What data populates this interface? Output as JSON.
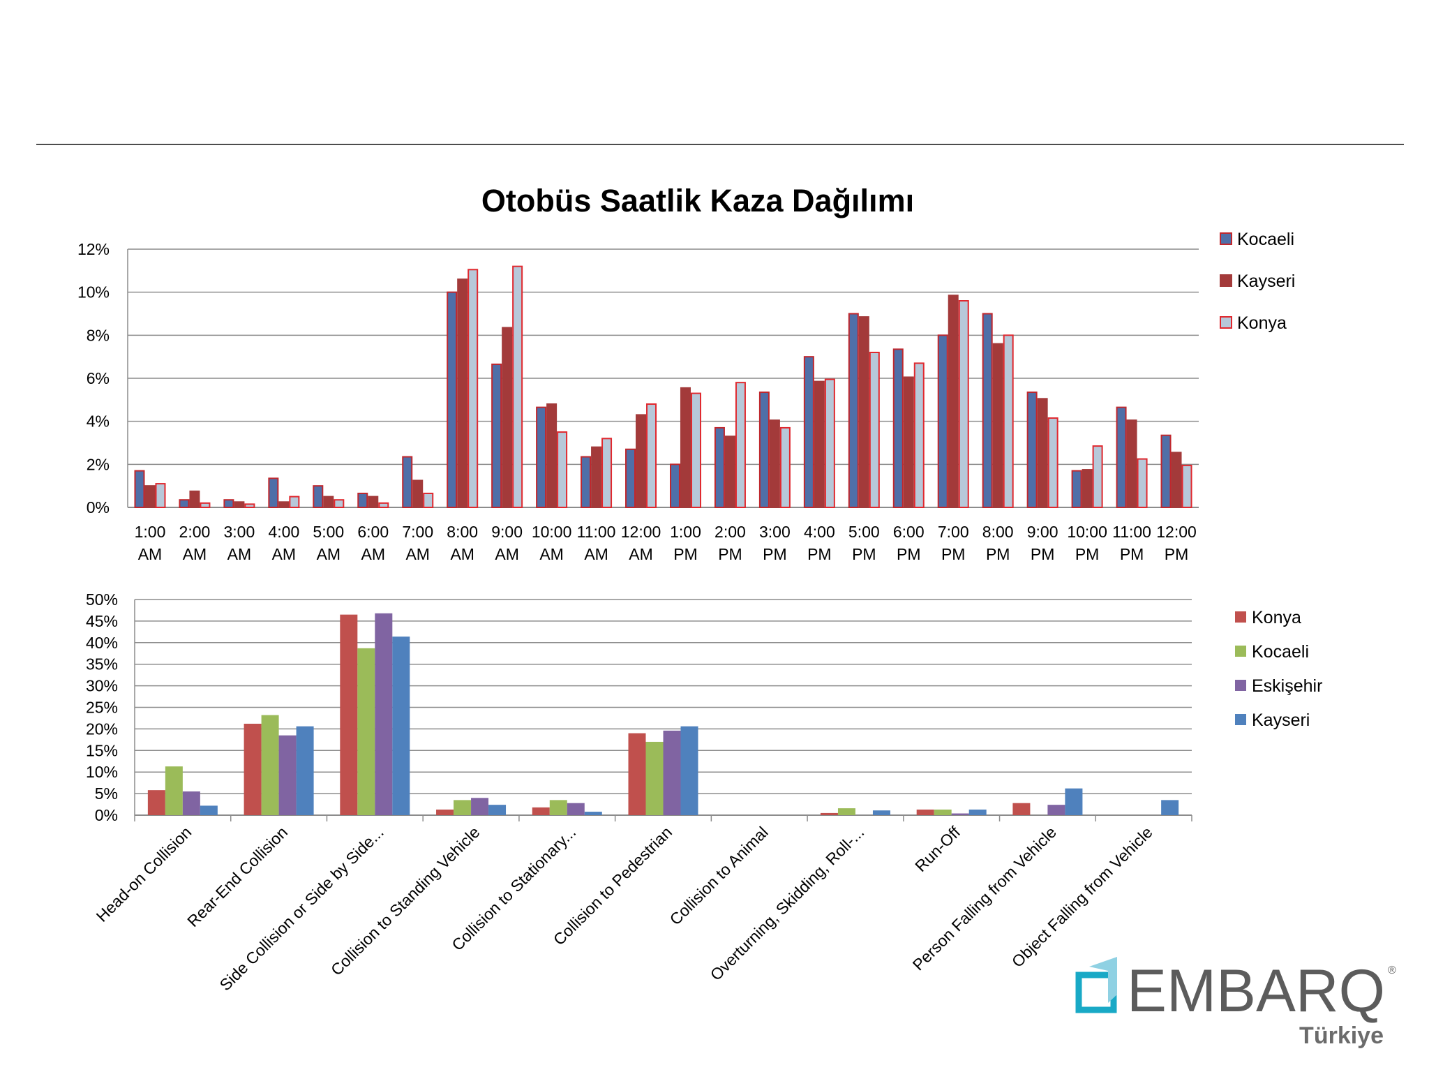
{
  "header": {
    "title": "Otobüs Saatlik Kaza Dağılımı"
  },
  "chart_data": [
    {
      "type": "bar",
      "title": "Otobüs Saatlik Kaza Dağılımı",
      "ylim": [
        0,
        12
      ],
      "yticks": [
        0,
        2,
        4,
        6,
        8,
        10,
        12
      ],
      "ytick_labels": [
        "0%",
        "2%",
        "4%",
        "6%",
        "8%",
        "10%",
        "12%"
      ],
      "categories": [
        [
          "1:00",
          "AM"
        ],
        [
          "2:00",
          "AM"
        ],
        [
          "3:00",
          "AM"
        ],
        [
          "4:00",
          "AM"
        ],
        [
          "5:00",
          "AM"
        ],
        [
          "6:00",
          "AM"
        ],
        [
          "7:00",
          "AM"
        ],
        [
          "8:00",
          "AM"
        ],
        [
          "9:00",
          "AM"
        ],
        [
          "10:00",
          "AM"
        ],
        [
          "11:00",
          "AM"
        ],
        [
          "12:00",
          "AM"
        ],
        [
          "1:00",
          "PM"
        ],
        [
          "2:00",
          "PM"
        ],
        [
          "3:00",
          "PM"
        ],
        [
          "4:00",
          "PM"
        ],
        [
          "5:00",
          "PM"
        ],
        [
          "6:00",
          "PM"
        ],
        [
          "7:00",
          "PM"
        ],
        [
          "8:00",
          "PM"
        ],
        [
          "9:00",
          "PM"
        ],
        [
          "10:00",
          "PM"
        ],
        [
          "11:00",
          "PM"
        ],
        [
          "12:00",
          "PM"
        ]
      ],
      "legend_position": "right",
      "grid": true,
      "series": [
        {
          "name": "Kocaeli",
          "color": "#4f6fa8",
          "border": "#c0272d",
          "values": [
            1.7,
            0.35,
            0.35,
            1.35,
            1.0,
            0.65,
            2.35,
            10.0,
            6.65,
            4.65,
            2.35,
            2.7,
            2.0,
            3.7,
            5.35,
            7.0,
            9.0,
            7.35,
            8.0,
            9.0,
            5.35,
            1.7,
            4.65,
            3.35
          ]
        },
        {
          "name": "Kayseri",
          "color": "#a33a3a",
          "border": "#a33a3a",
          "values": [
            1.0,
            0.75,
            0.25,
            0.25,
            0.5,
            0.5,
            1.25,
            10.6,
            8.35,
            4.8,
            2.8,
            4.3,
            5.55,
            3.3,
            4.05,
            5.85,
            8.85,
            6.05,
            9.85,
            7.6,
            5.05,
            1.75,
            4.05,
            2.55
          ]
        },
        {
          "name": "Konya",
          "color": "#b7c8d9",
          "border": "#e0282e",
          "values": [
            1.1,
            0.2,
            0.15,
            0.5,
            0.35,
            0.2,
            0.65,
            11.05,
            11.2,
            3.5,
            3.2,
            4.8,
            5.3,
            5.8,
            3.7,
            5.95,
            7.2,
            6.7,
            9.6,
            8.0,
            4.15,
            2.85,
            2.25,
            1.95
          ]
        }
      ]
    },
    {
      "type": "bar",
      "ylim": [
        0,
        50
      ],
      "yticks": [
        0,
        5,
        10,
        15,
        20,
        25,
        30,
        35,
        40,
        45,
        50
      ],
      "ytick_labels": [
        "0%",
        "5%",
        "10%",
        "15%",
        "20%",
        "25%",
        "30%",
        "35%",
        "40%",
        "45%",
        "50%"
      ],
      "categories": [
        "Head-on Collision",
        "Rear-End Collision",
        "Side Collision or Side by Side...",
        "Collision to Standing Vehicle",
        "Collision to Stationary...",
        "Collision to Pedestrian",
        "Collision to Animal",
        "Overturning, Skidding, Roll-...",
        "Run-Off",
        "Person Falling from Vehicle",
        "Object Falling from Vehicle"
      ],
      "legend_position": "right",
      "grid": true,
      "series": [
        {
          "name": "Konya",
          "color": "#c0504d",
          "values": [
            5.8,
            21.2,
            46.5,
            1.3,
            1.8,
            19.0,
            0,
            0.5,
            1.3,
            2.8,
            0
          ]
        },
        {
          "name": "Kocaeli",
          "color": "#9bbb59",
          "values": [
            11.3,
            23.2,
            38.7,
            3.5,
            3.5,
            17.0,
            0,
            1.6,
            1.3,
            0,
            0
          ]
        },
        {
          "name": "Eskişehir",
          "color": "#8064a2",
          "values": [
            5.5,
            18.5,
            46.8,
            4.0,
            2.8,
            19.6,
            0,
            0,
            0.4,
            2.4,
            0
          ]
        },
        {
          "name": "Kayseri",
          "color": "#4f81bd",
          "values": [
            2.2,
            20.6,
            41.4,
            2.4,
            0.8,
            20.6,
            0,
            1.1,
            1.3,
            6.2,
            3.5
          ]
        }
      ]
    }
  ],
  "logo": {
    "brand": "EMBARQ",
    "registered": "®",
    "subtitle": "Türkiye"
  }
}
